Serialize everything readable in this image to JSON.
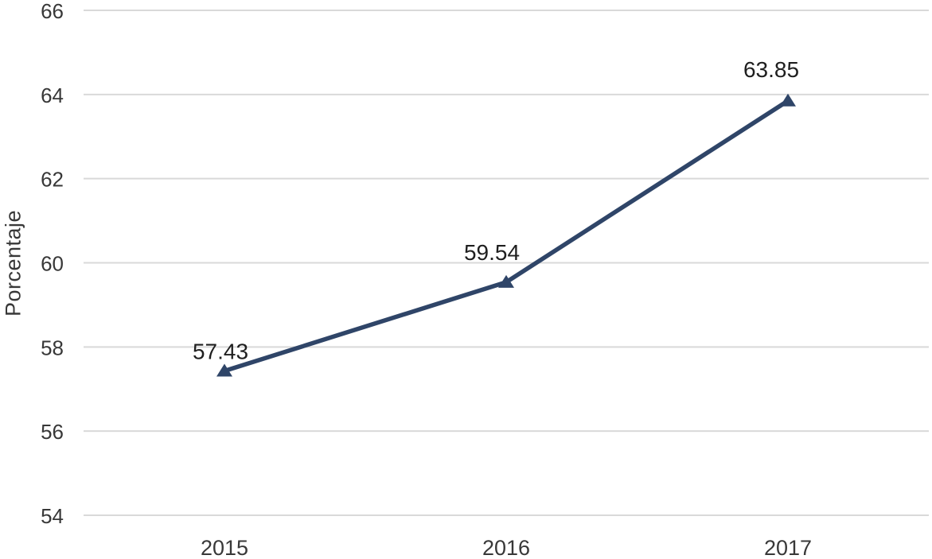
{
  "chart_data": {
    "type": "line",
    "title": "",
    "xlabel": "",
    "ylabel": "Porcentaje",
    "categories": [
      "2015",
      "2016",
      "2017"
    ],
    "series": [
      {
        "name": "Porcentaje",
        "values": [
          57.43,
          59.54,
          63.85
        ],
        "data_labels": [
          "57.43",
          "59.54",
          "63.85"
        ],
        "marker": "triangle-up",
        "color": "#2F4568"
      }
    ],
    "ylim": [
      54,
      66
    ],
    "ytick_interval": 2,
    "yticks": [
      66,
      64,
      62,
      60,
      58,
      56,
      54
    ],
    "grid": "horizontal",
    "legend": "none",
    "colors": {
      "line": "#2F4568",
      "gridline": "#D9D9D9",
      "tick_text": "#383838",
      "data_label_text": "#1F1F1F",
      "background": "#FFFFFF"
    }
  }
}
